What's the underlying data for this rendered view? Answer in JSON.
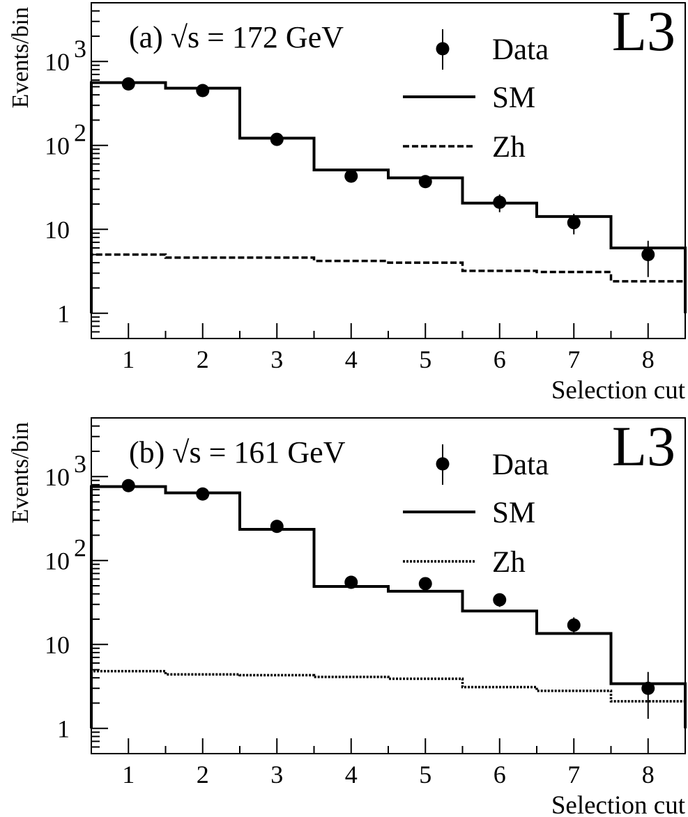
{
  "chart_data": [
    {
      "type": "line",
      "panel": "a",
      "title": "(a) √s = 172 GeV",
      "logo": "L3",
      "xlabel": "Selection cut",
      "ylabel": "Events/bin",
      "xlim": [
        0.5,
        8.5
      ],
      "ylim": [
        0.5,
        5000
      ],
      "yscale": "log",
      "grid": false,
      "legend_position": "top-right",
      "x_ticks": [
        {
          "v": 1,
          "label": "1"
        },
        {
          "v": 2,
          "label": "2"
        },
        {
          "v": 3,
          "label": "3"
        },
        {
          "v": 4,
          "label": "4"
        },
        {
          "v": 5,
          "label": "5"
        },
        {
          "v": 6,
          "label": "6"
        },
        {
          "v": 7,
          "label": "7"
        },
        {
          "v": 8,
          "label": "8"
        }
      ],
      "y_ticks": [
        {
          "v": 1,
          "base": "1",
          "exp": ""
        },
        {
          "v": 10,
          "base": "10",
          "exp": ""
        },
        {
          "v": 100,
          "base": "10",
          "exp": "2"
        },
        {
          "v": 1000,
          "base": "10",
          "exp": "3"
        }
      ],
      "series": [
        {
          "name": "Data",
          "kind": "points",
          "x": [
            1,
            2,
            3,
            4,
            5,
            6,
            7,
            8
          ],
          "y": [
            540,
            450,
            118,
            43,
            37,
            21,
            12,
            5
          ],
          "yerr_low": [
            30,
            25,
            12,
            7,
            6,
            5,
            3.3,
            2.3
          ],
          "yerr_high": [
            30,
            25,
            12,
            7,
            6,
            5,
            3.3,
            2.3
          ]
        },
        {
          "name": "SM",
          "kind": "step",
          "edges": [
            0.5,
            1.5,
            2.5,
            3.5,
            4.5,
            5.5,
            6.5,
            7.5,
            8.5
          ],
          "values": [
            560,
            480,
            122,
            51,
            41,
            20.5,
            14.2,
            6
          ]
        },
        {
          "name": "Zh",
          "kind": "step",
          "dash": "dashed",
          "edges": [
            0.5,
            1.5,
            2.5,
            3.5,
            4.5,
            5.5,
            6.5,
            7.5,
            8.5
          ],
          "values": [
            5.0,
            4.6,
            4.6,
            4.2,
            4.0,
            3.2,
            3.1,
            2.4
          ]
        }
      ]
    },
    {
      "type": "line",
      "panel": "b",
      "title": "(b) √s = 161 GeV",
      "logo": "L3",
      "xlabel": "Selection cut",
      "ylabel": "Events/bin",
      "xlim": [
        0.5,
        8.5
      ],
      "ylim": [
        0.5,
        5000
      ],
      "yscale": "log",
      "grid": false,
      "legend_position": "top-right",
      "x_ticks": [
        {
          "v": 1,
          "label": "1"
        },
        {
          "v": 2,
          "label": "2"
        },
        {
          "v": 3,
          "label": "3"
        },
        {
          "v": 4,
          "label": "4"
        },
        {
          "v": 5,
          "label": "5"
        },
        {
          "v": 6,
          "label": "6"
        },
        {
          "v": 7,
          "label": "7"
        },
        {
          "v": 8,
          "label": "8"
        }
      ],
      "y_ticks": [
        {
          "v": 1,
          "base": "1",
          "exp": ""
        },
        {
          "v": 10,
          "base": "10",
          "exp": ""
        },
        {
          "v": 100,
          "base": "10",
          "exp": "2"
        },
        {
          "v": 1000,
          "base": "10",
          "exp": "3"
        }
      ],
      "series": [
        {
          "name": "Data",
          "kind": "points",
          "x": [
            1,
            2,
            3,
            4,
            5,
            6,
            7,
            8
          ],
          "y": [
            780,
            620,
            255,
            55,
            53,
            34,
            17,
            3
          ],
          "yerr_low": [
            30,
            25,
            16,
            7.5,
            7.5,
            6,
            4,
            1.7
          ],
          "yerr_high": [
            30,
            25,
            16,
            7.5,
            7.5,
            6,
            4,
            1.7
          ]
        },
        {
          "name": "SM",
          "kind": "step",
          "edges": [
            0.5,
            1.5,
            2.5,
            3.5,
            4.5,
            5.5,
            6.5,
            7.5,
            8.5
          ],
          "values": [
            760,
            640,
            235,
            49,
            43,
            25,
            13.5,
            3.4
          ]
        },
        {
          "name": "Zh",
          "kind": "step",
          "dash": "dotted",
          "edges": [
            0.5,
            1.5,
            2.5,
            3.5,
            4.5,
            5.5,
            6.5,
            7.5,
            8.5
          ],
          "values": [
            4.8,
            4.4,
            4.3,
            4.1,
            3.9,
            3.1,
            2.8,
            2.1
          ]
        }
      ]
    }
  ]
}
